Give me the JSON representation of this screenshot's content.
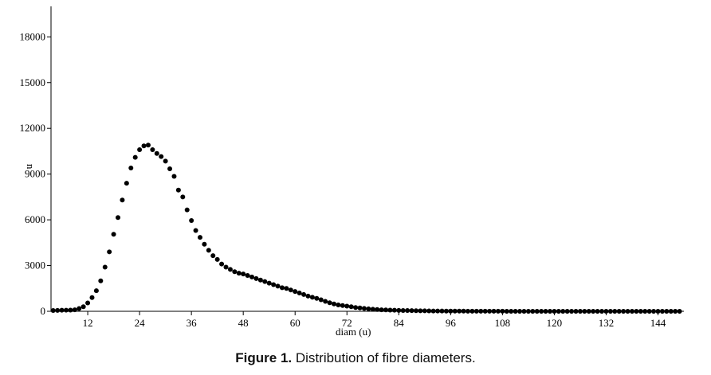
{
  "chart_data": {
    "type": "scatter",
    "xlabel": "diam (u)",
    "ylabel": "n",
    "xlim": [
      3.5,
      150
    ],
    "ylim": [
      0,
      20000
    ],
    "x_ticks": [
      12,
      24,
      36,
      48,
      60,
      72,
      84,
      96,
      108,
      120,
      132,
      144
    ],
    "y_ticks": [
      0,
      3000,
      6000,
      9000,
      12000,
      15000,
      18000
    ],
    "grid": false,
    "marker_color": "#000000",
    "series": [
      {
        "points": [
          [
            4,
            50
          ],
          [
            5,
            60
          ],
          [
            6,
            70
          ],
          [
            7,
            75
          ],
          [
            8,
            80
          ],
          [
            9,
            100
          ],
          [
            10,
            180
          ],
          [
            11,
            300
          ],
          [
            12,
            550
          ],
          [
            13,
            900
          ],
          [
            14,
            1350
          ],
          [
            15,
            2000
          ],
          [
            16,
            2900
          ],
          [
            17,
            3900
          ],
          [
            18,
            5050
          ],
          [
            19,
            6150
          ],
          [
            20,
            7300
          ],
          [
            21,
            8400
          ],
          [
            22,
            9400
          ],
          [
            23,
            10100
          ],
          [
            24,
            10600
          ],
          [
            25,
            10850
          ],
          [
            26,
            10900
          ],
          [
            27,
            10600
          ],
          [
            28,
            10350
          ],
          [
            29,
            10150
          ],
          [
            30,
            9850
          ],
          [
            31,
            9350
          ],
          [
            32,
            8850
          ],
          [
            33,
            7950
          ],
          [
            34,
            7500
          ],
          [
            35,
            6650
          ],
          [
            36,
            5950
          ],
          [
            37,
            5300
          ],
          [
            38,
            4850
          ],
          [
            39,
            4400
          ],
          [
            40,
            4000
          ],
          [
            41,
            3650
          ],
          [
            42,
            3400
          ],
          [
            43,
            3100
          ],
          [
            44,
            2900
          ],
          [
            45,
            2750
          ],
          [
            46,
            2600
          ],
          [
            47,
            2500
          ],
          [
            48,
            2450
          ],
          [
            49,
            2350
          ],
          [
            50,
            2250
          ],
          [
            51,
            2150
          ],
          [
            52,
            2050
          ],
          [
            53,
            1950
          ],
          [
            54,
            1850
          ],
          [
            55,
            1750
          ],
          [
            56,
            1650
          ],
          [
            57,
            1550
          ],
          [
            58,
            1500
          ],
          [
            59,
            1400
          ],
          [
            60,
            1300
          ],
          [
            61,
            1200
          ],
          [
            62,
            1100
          ],
          [
            63,
            1000
          ],
          [
            64,
            920
          ],
          [
            65,
            850
          ],
          [
            66,
            760
          ],
          [
            67,
            650
          ],
          [
            68,
            560
          ],
          [
            69,
            480
          ],
          [
            70,
            420
          ],
          [
            71,
            380
          ],
          [
            72,
            340
          ],
          [
            73,
            300
          ],
          [
            74,
            250
          ],
          [
            75,
            220
          ],
          [
            76,
            190
          ],
          [
            77,
            160
          ],
          [
            78,
            140
          ],
          [
            79,
            120
          ],
          [
            80,
            100
          ],
          [
            81,
            90
          ],
          [
            82,
            80
          ],
          [
            83,
            70
          ],
          [
            84,
            60
          ],
          [
            85,
            55
          ],
          [
            86,
            50
          ],
          [
            87,
            45
          ],
          [
            88,
            40
          ],
          [
            89,
            35
          ],
          [
            90,
            30
          ],
          [
            91,
            25
          ],
          [
            92,
            22
          ],
          [
            93,
            20
          ],
          [
            94,
            18
          ],
          [
            95,
            15
          ],
          [
            96,
            13
          ],
          [
            97,
            12
          ],
          [
            98,
            10
          ],
          [
            99,
            10
          ],
          [
            100,
            9
          ],
          [
            101,
            8
          ],
          [
            102,
            7
          ],
          [
            103,
            6
          ],
          [
            104,
            5
          ],
          [
            105,
            5
          ],
          [
            106,
            5
          ],
          [
            107,
            4
          ],
          [
            108,
            4
          ],
          [
            109,
            3
          ],
          [
            110,
            3
          ],
          [
            111,
            3
          ],
          [
            112,
            3
          ],
          [
            113,
            2
          ],
          [
            114,
            2
          ],
          [
            115,
            2
          ],
          [
            116,
            2
          ],
          [
            117,
            2
          ],
          [
            118,
            1
          ],
          [
            119,
            1
          ],
          [
            120,
            1
          ],
          [
            121,
            1
          ],
          [
            122,
            1
          ],
          [
            123,
            1
          ],
          [
            124,
            1
          ],
          [
            125,
            1
          ],
          [
            126,
            0
          ],
          [
            127,
            0
          ],
          [
            128,
            0
          ],
          [
            129,
            0
          ],
          [
            130,
            0
          ],
          [
            131,
            0
          ],
          [
            132,
            0
          ],
          [
            133,
            0
          ],
          [
            134,
            0
          ],
          [
            135,
            0
          ],
          [
            136,
            0
          ],
          [
            137,
            0
          ],
          [
            138,
            0
          ],
          [
            139,
            0
          ],
          [
            140,
            0
          ],
          [
            141,
            0
          ],
          [
            142,
            0
          ],
          [
            143,
            0
          ],
          [
            144,
            0
          ],
          [
            145,
            0
          ],
          [
            146,
            0
          ],
          [
            147,
            0
          ],
          [
            148,
            0
          ],
          [
            149,
            0
          ]
        ]
      }
    ]
  },
  "caption": {
    "label": "Figure 1.",
    "text": " Distribution of fibre diameters."
  }
}
